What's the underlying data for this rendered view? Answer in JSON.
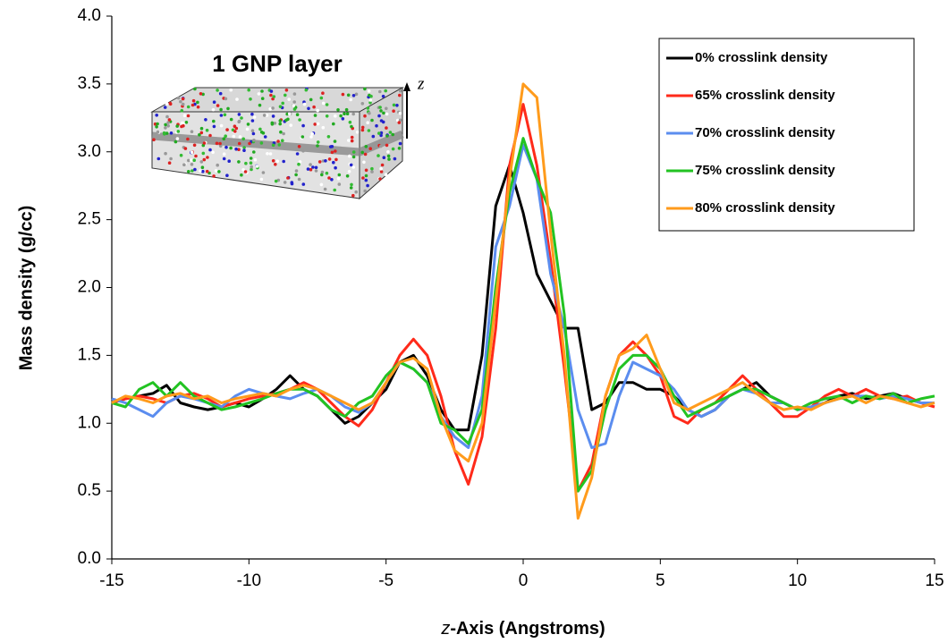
{
  "chart_data": {
    "type": "line",
    "annotations": {
      "inset_title": "1 GNP layer",
      "axis_arrow_label": "z"
    },
    "ylabel": "Mass density (g/cc)",
    "xlabel_italic": "z",
    "xlabel": "-Axis (Angstroms)",
    "x": [
      -15,
      -14.5,
      -14,
      -13.5,
      -13,
      -12.5,
      -12,
      -11.5,
      -11,
      -10.5,
      -10,
      -9.5,
      -9,
      -8.5,
      -8,
      -7.5,
      -7,
      -6.5,
      -6,
      -5.5,
      -5,
      -4.5,
      -4,
      -3.5,
      -3,
      -2.5,
      -2,
      -1.5,
      -1,
      -0.5,
      0,
      0.5,
      1,
      1.5,
      2,
      2.5,
      3,
      3.5,
      4,
      4.5,
      5,
      5.5,
      6,
      6.5,
      7,
      7.5,
      8,
      8.5,
      9,
      9.5,
      10,
      10.5,
      11,
      11.5,
      12,
      12.5,
      13,
      13.5,
      14,
      14.5,
      15
    ],
    "xlim": [
      -15,
      15
    ],
    "xticks": [
      -15,
      -10,
      -5,
      0,
      5,
      10,
      15
    ],
    "ylim": [
      0,
      4
    ],
    "yticks": [
      {
        "value": 0,
        "label": "0.0"
      },
      0.5,
      {
        "value": 1,
        "label": "1.0"
      },
      1.5,
      {
        "value": 2,
        "label": "2.0"
      },
      2.5,
      {
        "value": 3,
        "label": "3.0"
      },
      3.5,
      {
        "value": 4,
        "label": "4.0"
      }
    ],
    "legend": "upper right",
    "series": [
      {
        "name": "0% crosslink density",
        "color": "#000000",
        "values": [
          1.15,
          1.18,
          1.2,
          1.22,
          1.28,
          1.15,
          1.12,
          1.1,
          1.12,
          1.15,
          1.12,
          1.18,
          1.25,
          1.35,
          1.25,
          1.2,
          1.1,
          1.0,
          1.05,
          1.15,
          1.25,
          1.45,
          1.5,
          1.35,
          1.1,
          0.95,
          0.95,
          1.5,
          2.6,
          2.9,
          2.55,
          2.1,
          1.9,
          1.7,
          1.7,
          1.1,
          1.15,
          1.3,
          1.3,
          1.25,
          1.25,
          1.2,
          1.1,
          1.05,
          1.1,
          1.2,
          1.25,
          1.3,
          1.2,
          1.15,
          1.1,
          1.12,
          1.15,
          1.2,
          1.22,
          1.18,
          1.2,
          1.22,
          1.18,
          1.15,
          1.15
        ]
      },
      {
        "name": "65% crosslink density",
        "color": "#ff2a1a",
        "values": [
          1.15,
          1.18,
          1.2,
          1.18,
          1.15,
          1.2,
          1.22,
          1.18,
          1.12,
          1.15,
          1.18,
          1.2,
          1.22,
          1.25,
          1.3,
          1.25,
          1.15,
          1.05,
          0.98,
          1.1,
          1.3,
          1.5,
          1.62,
          1.5,
          1.2,
          0.8,
          0.55,
          0.9,
          1.7,
          2.9,
          3.35,
          2.9,
          2.2,
          1.4,
          0.5,
          0.7,
          1.2,
          1.5,
          1.6,
          1.5,
          1.35,
          1.05,
          1.0,
          1.1,
          1.15,
          1.25,
          1.35,
          1.25,
          1.15,
          1.05,
          1.05,
          1.12,
          1.2,
          1.25,
          1.2,
          1.25,
          1.2,
          1.18,
          1.2,
          1.15,
          1.12
        ]
      },
      {
        "name": "70% crosslink density",
        "color": "#5b8def",
        "values": [
          1.18,
          1.15,
          1.1,
          1.05,
          1.15,
          1.2,
          1.18,
          1.15,
          1.12,
          1.2,
          1.25,
          1.22,
          1.2,
          1.18,
          1.22,
          1.25,
          1.2,
          1.12,
          1.08,
          1.15,
          1.3,
          1.45,
          1.4,
          1.3,
          1.05,
          0.9,
          0.82,
          1.2,
          2.3,
          2.6,
          3.05,
          2.8,
          2.1,
          1.7,
          1.1,
          0.82,
          0.85,
          1.2,
          1.45,
          1.4,
          1.35,
          1.25,
          1.1,
          1.05,
          1.1,
          1.2,
          1.25,
          1.22,
          1.15,
          1.15,
          1.1,
          1.12,
          1.15,
          1.18,
          1.2,
          1.2,
          1.18,
          1.2,
          1.18,
          1.15,
          1.15
        ]
      },
      {
        "name": "75% crosslink density",
        "color": "#22c322",
        "values": [
          1.15,
          1.12,
          1.25,
          1.3,
          1.2,
          1.3,
          1.2,
          1.15,
          1.1,
          1.12,
          1.15,
          1.18,
          1.22,
          1.25,
          1.25,
          1.2,
          1.1,
          1.05,
          1.15,
          1.2,
          1.35,
          1.45,
          1.4,
          1.3,
          1.0,
          0.95,
          0.85,
          1.1,
          2.0,
          2.7,
          3.1,
          2.8,
          2.55,
          1.8,
          0.5,
          0.65,
          1.1,
          1.4,
          1.5,
          1.5,
          1.4,
          1.2,
          1.05,
          1.1,
          1.15,
          1.2,
          1.25,
          1.25,
          1.2,
          1.15,
          1.1,
          1.15,
          1.18,
          1.2,
          1.15,
          1.2,
          1.18,
          1.22,
          1.15,
          1.18,
          1.2
        ]
      },
      {
        "name": "80% crosslink density",
        "color": "#ff9b1c",
        "values": [
          1.15,
          1.2,
          1.18,
          1.15,
          1.2,
          1.22,
          1.18,
          1.2,
          1.15,
          1.18,
          1.2,
          1.22,
          1.2,
          1.25,
          1.28,
          1.25,
          1.2,
          1.15,
          1.1,
          1.15,
          1.3,
          1.45,
          1.48,
          1.4,
          1.05,
          0.8,
          0.72,
          1.0,
          1.9,
          2.8,
          3.5,
          3.4,
          2.4,
          1.5,
          0.3,
          0.6,
          1.2,
          1.5,
          1.55,
          1.65,
          1.4,
          1.15,
          1.1,
          1.15,
          1.2,
          1.25,
          1.3,
          1.22,
          1.15,
          1.1,
          1.12,
          1.1,
          1.15,
          1.18,
          1.2,
          1.15,
          1.2,
          1.18,
          1.15,
          1.12,
          1.15
        ]
      }
    ]
  }
}
